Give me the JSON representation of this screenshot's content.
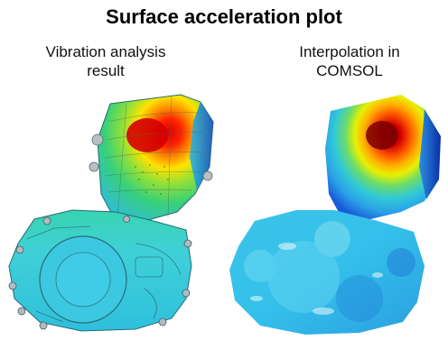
{
  "figure": {
    "title": "Surface acceleration plot",
    "left_caption_line1": "Vibration analysis",
    "left_caption_line2": "result",
    "right_caption_line1": "Interpolation in",
    "right_caption_line2": "COMSOL"
  },
  "colors": {
    "hot": "#d40000",
    "warm": "#ff7a00",
    "yellow": "#f2e600",
    "green": "#3fd04a",
    "cyan": "#35c6d8",
    "blue": "#1f6fe0",
    "dark_blue": "#0b2fa8"
  }
}
